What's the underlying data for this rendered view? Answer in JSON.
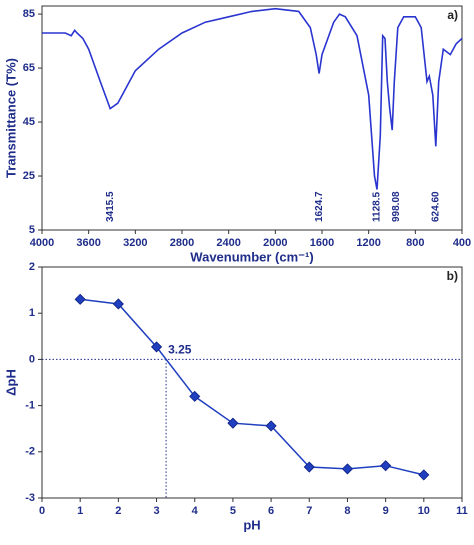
{
  "chart_data": [
    {
      "type": "line",
      "label": "a)",
      "ylabel": "Transmittance (T%)",
      "xlabel": "Wavenumber (cm⁻¹)",
      "color": "#2a35d0",
      "x": [
        4000,
        3800,
        3750,
        3720,
        3700,
        3650,
        3600,
        3500,
        3415.5,
        3350,
        3200,
        3000,
        2800,
        2600,
        2400,
        2200,
        2000,
        1800,
        1700,
        1650,
        1624.7,
        1600,
        1500,
        1450,
        1400,
        1300,
        1200,
        1150,
        1128.5,
        1100,
        1080,
        1060,
        1040,
        1020,
        998.08,
        980,
        950,
        900,
        800,
        750,
        700,
        680,
        650,
        624.6,
        600,
        560,
        500,
        450,
        400
      ],
      "values": [
        78,
        78,
        77,
        79,
        78,
        76,
        72,
        60,
        50,
        52,
        64,
        72,
        78,
        82,
        84,
        86,
        87,
        86,
        80,
        70,
        63,
        70,
        82,
        85,
        84,
        77,
        55,
        25,
        20,
        40,
        77,
        76,
        60,
        50,
        42,
        60,
        80,
        84,
        84,
        80,
        60,
        62,
        55,
        36,
        60,
        72,
        70,
        74,
        76
      ],
      "xlim": [
        4000,
        400
      ],
      "xticks": [
        4000,
        3600,
        3200,
        2800,
        2400,
        2000,
        1600,
        1200,
        800,
        400
      ],
      "ylim": [
        5,
        88
      ],
      "yticks": [
        5,
        25,
        45,
        65,
        85
      ],
      "annotations": [
        {
          "label": "3415.5",
          "x": 3415.5
        },
        {
          "label": "1624.7",
          "x": 1624.7
        },
        {
          "label": "1128.5",
          "x": 1128.5
        },
        {
          "label": "998.08",
          "x": 998.08
        },
        {
          "label": "624.60",
          "x": 624.6
        }
      ]
    },
    {
      "type": "line",
      "label": "b)",
      "ylabel": "ΔpH",
      "xlabel": "pH",
      "color": "#1f3fbf",
      "markers": "diamond",
      "x": [
        1,
        2,
        3,
        4,
        5,
        6,
        7,
        8,
        9,
        10
      ],
      "values": [
        1.3,
        1.2,
        0.27,
        -0.8,
        -1.38,
        -1.44,
        -2.33,
        -2.37,
        -2.3,
        -2.5
      ],
      "xlim": [
        0,
        11
      ],
      "xticks": [
        0,
        1,
        2,
        3,
        4,
        5,
        6,
        7,
        8,
        9,
        10,
        11
      ],
      "ylim": [
        -3,
        2
      ],
      "yticks": [
        -3,
        -2,
        -1,
        0,
        1,
        2
      ],
      "annotations": [
        {
          "label": "3.25",
          "x": 3.25,
          "y": 0
        }
      ]
    }
  ]
}
